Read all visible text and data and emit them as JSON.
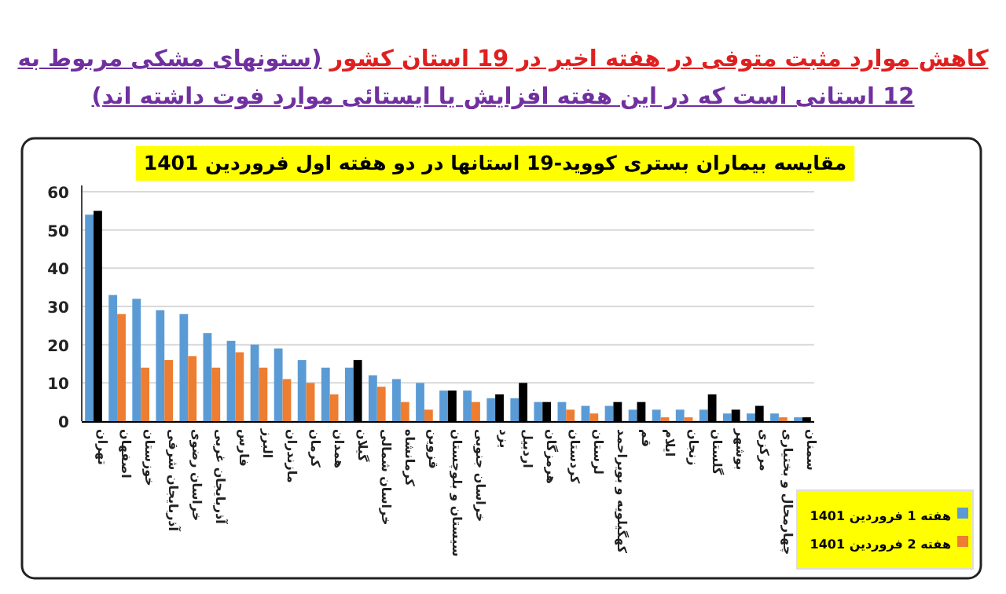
{
  "chart_data": {
    "type": "bar",
    "title": "کاهش موارد مثبت متوفی در هفته اخیر در 19 استان کشور",
    "subtitle": "(ستونهای مشکی مربوط به 12 استانی است که در این هفته افزایش یا ایستائی موارد فوت داشته اند)",
    "annotations": [
      "مقایسه بیماران بستری کووید-19 استانها در دو هفته اول فروردین 1401"
    ],
    "categories": [
      "تهران",
      "اصفهان",
      "خوزستان",
      "آذربایجان شرقی",
      "خراسان رضوی",
      "آذربایجان غربی",
      "فارس",
      "البرز",
      "مازندران",
      "کرمان",
      "همدان",
      "گیلان",
      "خراسان شمالی",
      "کرمانشاه",
      "قزوین",
      "سیستان و بلوچستان",
      "خراسان جنوبی",
      "یزد",
      "اردبیل",
      "هرمزگان",
      "کردستان",
      "لرستان",
      "کهگیلویه و بویراحمد",
      "قم",
      "ایلام",
      "زنجان",
      "گلستان",
      "بوشهر",
      "مرکزی",
      "چهارمحال و بختیاری",
      "سمنان"
    ],
    "series": [
      {
        "name": "هفته 1 فروردین 1401",
        "color": "#5b9bd5",
        "values": [
          54,
          33,
          32,
          29,
          28,
          23,
          21,
          20,
          19,
          16,
          14,
          14,
          12,
          11,
          10,
          8,
          8,
          6,
          6,
          5,
          5,
          4,
          4,
          3,
          3,
          3,
          3,
          2,
          2,
          2,
          1
        ]
      },
      {
        "name": "هفته 2 فروردین 1401",
        "color": "#ed7d31",
        "colors": [
          "#000000",
          "#ed7d31",
          "#ed7d31",
          "#ed7d31",
          "#ed7d31",
          "#ed7d31",
          "#ed7d31",
          "#ed7d31",
          "#ed7d31",
          "#ed7d31",
          "#ed7d31",
          "#000000",
          "#ed7d31",
          "#ed7d31",
          "#ed7d31",
          "#000000",
          "#ed7d31",
          "#000000",
          "#000000",
          "#000000",
          "#ed7d31",
          "#ed7d31",
          "#000000",
          "#000000",
          "#ed7d31",
          "#ed7d31",
          "#000000",
          "#000000",
          "#000000",
          "#ed7d31",
          "#000000"
        ],
        "values": [
          55,
          28,
          14,
          16,
          17,
          14,
          18,
          14,
          11,
          10,
          7,
          16,
          9,
          5,
          3,
          8,
          5,
          7,
          10,
          5,
          3,
          2,
          5,
          5,
          1,
          1,
          7,
          3,
          4,
          1,
          1
        ]
      }
    ],
    "ylim": [
      0,
      60
    ],
    "yticks": [
      0,
      10,
      20,
      30,
      40,
      50,
      60
    ],
    "grid": "y",
    "legend": "bottom right"
  }
}
